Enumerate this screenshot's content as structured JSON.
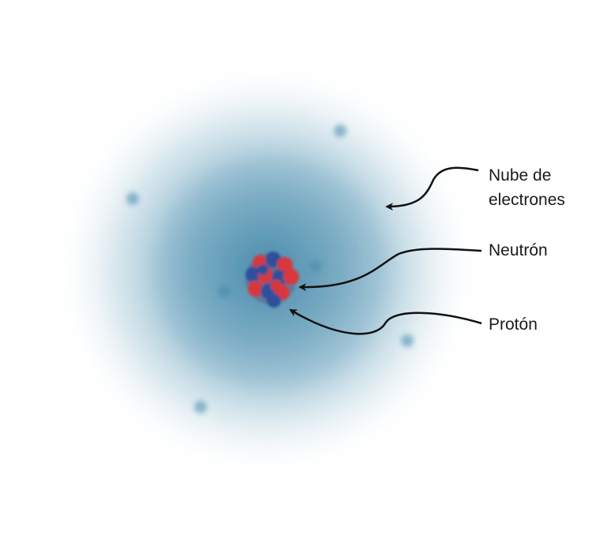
{
  "labels": {
    "electron_cloud_line1": "Nube de",
    "electron_cloud_line2": "electrones",
    "neutron": "Neutrón",
    "proton": "Protón"
  },
  "colors": {
    "cloud": "#3f86a8",
    "electron": "#3f86a8",
    "proton": "#d8383a",
    "neutron": "#2e4f9a",
    "arrow": "#111111"
  }
}
